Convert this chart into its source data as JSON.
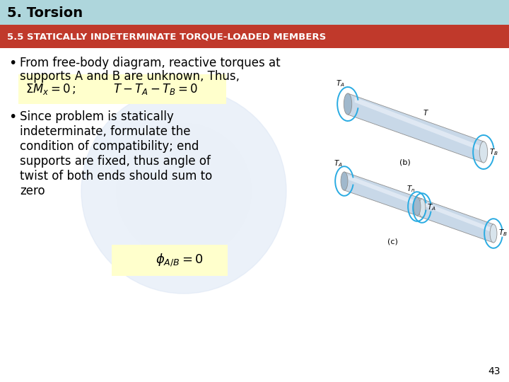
{
  "title": "5. Torsion",
  "title_bg": "#aed6dc",
  "subtitle": "5.5 STATICALLY INDETERMINATE TORQUE-LOADED MEMBERS",
  "subtitle_bg": "#c0392b",
  "subtitle_fg": "#ffffff",
  "bg_color": "#ffffff",
  "bullet1_line1": "From free-body diagram, reactive torques at",
  "bullet1_line2": "supports A and B are unknown, Thus,",
  "formula1_box_color": "#ffffcc",
  "bullet2_line1": "Since problem is statically",
  "bullet2_line2": "indeterminate, formulate the",
  "bullet2_line3": "condition of compatibility; end",
  "bullet2_line4": "supports are fixed, thus angle of",
  "bullet2_line5": "twist of both ends should sum to",
  "bullet2_line6": "zero",
  "formula2_box_color": "#ffffcc",
  "page_number": "43",
  "watermark_color": "#dce6f5",
  "arrow_color": "#29abe2",
  "shaft_color1": "#c8d8e8",
  "shaft_color2": "#a0b8cc"
}
